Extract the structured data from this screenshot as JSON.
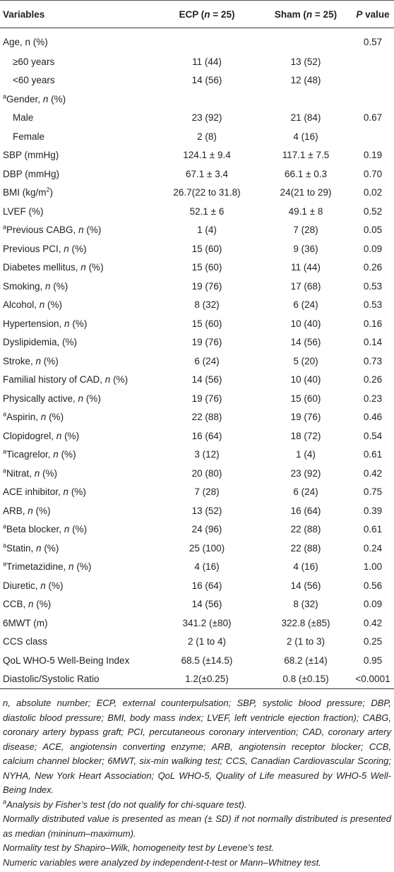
{
  "table": {
    "header": [
      [
        "Variables"
      ],
      [
        "ECP (",
        {
          "i": "n"
        },
        " = 25)"
      ],
      [
        "Sham (",
        {
          "i": "n"
        },
        " = 25)"
      ],
      [
        {
          "i": "P"
        },
        " value"
      ]
    ],
    "rows": [
      {
        "label": [
          "Age, n (%)"
        ],
        "p": "0.57"
      },
      {
        "label": [
          "≥60 years"
        ],
        "indent": true,
        "ecp": "11 (44)",
        "sham": "13 (52)"
      },
      {
        "label": [
          "<60 years"
        ],
        "indent": true,
        "ecp": "14 (56)",
        "sham": "12 (48)"
      },
      {
        "label": [
          {
            "sup": "a"
          },
          "Gender, ",
          {
            "i": "n"
          },
          " (%)"
        ]
      },
      {
        "label": [
          "Male"
        ],
        "indent": true,
        "ecp": "23 (92)",
        "sham": "21 (84)",
        "p": "0.67"
      },
      {
        "label": [
          "Female"
        ],
        "indent": true,
        "ecp": "2 (8)",
        "sham": "4 (16)"
      },
      {
        "label": [
          "SBP (mmHg)"
        ],
        "ecp": "124.1 ± 9.4",
        "sham": "117.1 ± 7.5",
        "p": "0.19"
      },
      {
        "label": [
          "DBP (mmHg)"
        ],
        "ecp": "67.1 ± 3.4",
        "sham": "66.1 ± 0.3",
        "p": "0.70"
      },
      {
        "label": [
          "BMI (kg/m",
          {
            "sup": "2"
          },
          ")"
        ],
        "ecp": "26.7(22 to 31.8)",
        "sham": "24(21 to 29)",
        "p": "0.02"
      },
      {
        "label": [
          "LVEF (%)"
        ],
        "ecp": "52.1 ± 6",
        "sham": "49.1 ± 8",
        "p": "0.52"
      },
      {
        "label": [
          {
            "sup": "a"
          },
          "Previous CABG, ",
          {
            "i": "n"
          },
          " (%)"
        ],
        "ecp": "1 (4)",
        "sham": "7 (28)",
        "p": "0.05"
      },
      {
        "label": [
          "Previous PCI, ",
          {
            "i": "n"
          },
          " (%)"
        ],
        "ecp": "15 (60)",
        "sham": "9 (36)",
        "p": "0.09"
      },
      {
        "label": [
          "Diabetes mellitus, ",
          {
            "i": "n"
          },
          " (%)"
        ],
        "ecp": "15 (60)",
        "sham": "11 (44)",
        "p": "0.26"
      },
      {
        "label": [
          "Smoking, ",
          {
            "i": "n"
          },
          " (%)"
        ],
        "ecp": "19 (76)",
        "sham": "17 (68)",
        "p": "0.53"
      },
      {
        "label": [
          "Alcohol, ",
          {
            "i": "n"
          },
          " (%)"
        ],
        "ecp": "8 (32)",
        "sham": "6 (24)",
        "p": "0.53"
      },
      {
        "label": [
          "Hypertension, ",
          {
            "i": "n"
          },
          " (%)"
        ],
        "ecp": "15 (60)",
        "sham": "10 (40)",
        "p": "0.16"
      },
      {
        "label": [
          "Dyslipidemia, (%)"
        ],
        "ecp": "19 (76)",
        "sham": "14 (56)",
        "p": "0.14"
      },
      {
        "label": [
          "Stroke, ",
          {
            "i": "n"
          },
          " (%)"
        ],
        "ecp": "6 (24)",
        "sham": "5 (20)",
        "p": "0.73"
      },
      {
        "label": [
          "Familial history of CAD, ",
          {
            "i": "n"
          },
          " (%)"
        ],
        "ecp": "14 (56)",
        "sham": "10 (40)",
        "p": "0.26"
      },
      {
        "label": [
          "Physically active, ",
          {
            "i": "n"
          },
          " (%)"
        ],
        "ecp": "19 (76)",
        "sham": "15 (60)",
        "p": "0.23"
      },
      {
        "label": [
          {
            "sup": "a"
          },
          "Aspirin, ",
          {
            "i": "n"
          },
          " (%)"
        ],
        "ecp": "22 (88)",
        "sham": "19 (76)",
        "p": "0.46"
      },
      {
        "label": [
          "Clopidogrel, ",
          {
            "i": "n"
          },
          " (%)"
        ],
        "ecp": "16 (64)",
        "sham": "18 (72)",
        "p": "0.54"
      },
      {
        "label": [
          {
            "sup": "a"
          },
          "Ticagrelor, ",
          {
            "i": "n"
          },
          " (%)"
        ],
        "ecp": "3 (12)",
        "sham": "1 (4)",
        "p": "0.61"
      },
      {
        "label": [
          {
            "sup": "a"
          },
          "Nitrat, ",
          {
            "i": "n"
          },
          " (%)"
        ],
        "ecp": "20 (80)",
        "sham": "23 (92)",
        "p": "0.42"
      },
      {
        "label": [
          "ACE inhibitor, ",
          {
            "i": "n"
          },
          " (%)"
        ],
        "ecp": "7 (28)",
        "sham": "6 (24)",
        "p": "0.75"
      },
      {
        "label": [
          "ARB, ",
          {
            "i": "n"
          },
          " (%)"
        ],
        "ecp": "13 (52)",
        "sham": "16 (64)",
        "p": "0.39"
      },
      {
        "label": [
          {
            "sup": "a"
          },
          "Beta blocker, ",
          {
            "i": "n"
          },
          " (%)"
        ],
        "ecp": "24 (96)",
        "sham": "22 (88)",
        "p": "0.61"
      },
      {
        "label": [
          {
            "sup": "a"
          },
          "Statin, ",
          {
            "i": "n"
          },
          " (%)"
        ],
        "ecp": "25 (100)",
        "sham": "22 (88)",
        "p": "0.24"
      },
      {
        "label": [
          {
            "sup": "a"
          },
          "Trimetazidine, ",
          {
            "i": "n"
          },
          " (%)"
        ],
        "ecp": "4 (16)",
        "sham": "4 (16)",
        "p": "1.00"
      },
      {
        "label": [
          "Diuretic, ",
          {
            "i": "n"
          },
          " (%)"
        ],
        "ecp": "16 (64)",
        "sham": "14 (56)",
        "p": "0.56"
      },
      {
        "label": [
          "CCB, ",
          {
            "i": "n"
          },
          " (%)"
        ],
        "ecp": "14 (56)",
        "sham": "8 (32)",
        "p": "0.09"
      },
      {
        "label": [
          "6MWT (m)"
        ],
        "ecp": "341.2 (±80)",
        "sham": "322.8 (±85)",
        "p": "0.42"
      },
      {
        "label": [
          "CCS class"
        ],
        "ecp": "2 (1 to 4)",
        "sham": "2 (1 to 3)",
        "p": "0.25"
      },
      {
        "label": [
          "QoL WHO-5 Well-Being Index"
        ],
        "ecp": "68.5 (±14.5)",
        "sham": "68.2 (±14)",
        "p": "0.95"
      },
      {
        "label": [
          "Diastolic/Systolic Ratio"
        ],
        "ecp": "1.2(±0.25)",
        "sham": "0.8 (±0.15)",
        "p": "<0.0001"
      }
    ],
    "footnotes": [
      [
        "n, absolute number; ECP, external counterpulsation; SBP, systolic blood pressure; DBP, diastolic blood pressure; BMI, body mass index; LVEF, left ventricle ejection fraction); CABG, coronary artery bypass graft; PCI, percutaneous coronary intervention; CAD, coronary artery disease; ACE, angiotensin converting enzyme; ARB, angiotensin receptor blocker; CCB, calcium channel blocker; 6MWT, six-min walking test; CCS, Canadian Cardiovascular Scoring; NYHA, New York Heart Association; QoL WHO-5, Quality of Life measured by WHO-5 Well-Being Index."
      ],
      [
        {
          "sup": "a"
        },
        "Analysis by Fisher’s test (do not qualify for chi-square test)."
      ],
      [
        "Normally distributed value is presented as mean (± SD) if not normally distributed is presented as median (mininum–maximum)."
      ],
      [
        "Normality test by Shapiro–Wilk, homogeneity test by Levene’s test."
      ],
      [
        "Numeric variables were analyzed by independent-t-test or Mann–Whitney test."
      ]
    ]
  }
}
